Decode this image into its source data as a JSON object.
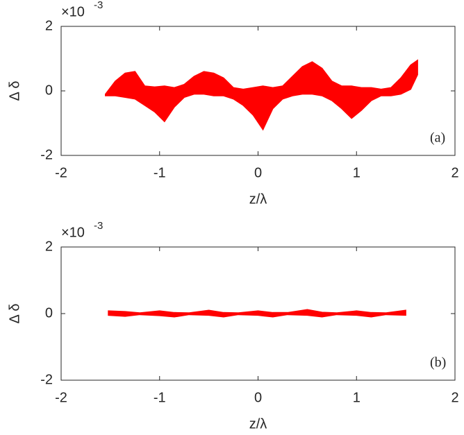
{
  "chart_data": [
    {
      "type": "band",
      "color": "#ff0000",
      "x": [
        -1.55,
        -1.45,
        -1.35,
        -1.25,
        -1.15,
        -1.05,
        -0.95,
        -0.85,
        -0.75,
        -0.65,
        -0.55,
        -0.45,
        -0.35,
        -0.25,
        -0.15,
        -0.05,
        0.05,
        0.15,
        0.25,
        0.35,
        0.45,
        0.55,
        0.65,
        0.75,
        0.85,
        0.95,
        1.05,
        1.15,
        1.25,
        1.35,
        1.45,
        1.55,
        1.62
      ],
      "upper": [
        -0.1,
        0.3,
        0.55,
        0.6,
        0.15,
        0.12,
        0.15,
        0.1,
        0.2,
        0.45,
        0.6,
        0.55,
        0.4,
        0.1,
        0.05,
        0.1,
        0.15,
        0.1,
        0.15,
        0.45,
        0.75,
        0.9,
        0.7,
        0.3,
        0.15,
        0.15,
        0.1,
        0.1,
        0.05,
        0.1,
        0.4,
        0.8,
        0.95
      ],
      "lower": [
        -0.15,
        -0.15,
        -0.2,
        -0.25,
        -0.45,
        -0.65,
        -0.95,
        -0.5,
        -0.2,
        -0.1,
        -0.1,
        -0.15,
        -0.15,
        -0.25,
        -0.45,
        -0.75,
        -1.2,
        -0.55,
        -0.25,
        -0.15,
        -0.1,
        -0.1,
        -0.15,
        -0.3,
        -0.55,
        -0.85,
        -0.6,
        -0.3,
        -0.15,
        -0.15,
        -0.1,
        0.05,
        0.5
      ],
      "xlim": [
        -2,
        2
      ],
      "ylim": [
        -2,
        2
      ],
      "xticks": [
        -2,
        -1,
        0,
        1,
        2
      ],
      "yticks": [
        -2,
        0,
        2
      ],
      "xlabel": "z/λ",
      "ylabel": "Δ δ",
      "exponent_base": "×10",
      "exponent": "-3",
      "annotation": "(a)"
    },
    {
      "type": "band",
      "color": "#ff0000",
      "x": [
        -1.52,
        -1.35,
        -1.2,
        -1.0,
        -0.85,
        -0.7,
        -0.5,
        -0.35,
        -0.2,
        0.0,
        0.15,
        0.3,
        0.5,
        0.65,
        0.8,
        1.0,
        1.15,
        1.3,
        1.5
      ],
      "upper": [
        0.08,
        0.06,
        0.02,
        0.08,
        0.03,
        0.02,
        0.1,
        0.03,
        0.02,
        0.08,
        0.03,
        0.03,
        0.12,
        0.04,
        0.02,
        0.08,
        0.03,
        0.02,
        0.1
      ],
      "lower": [
        -0.05,
        -0.08,
        -0.03,
        -0.06,
        -0.1,
        -0.03,
        -0.05,
        -0.1,
        -0.03,
        -0.05,
        -0.1,
        -0.03,
        -0.05,
        -0.1,
        -0.03,
        -0.05,
        -0.1,
        -0.03,
        -0.05
      ],
      "xlim": [
        -2,
        2
      ],
      "ylim": [
        -2,
        2
      ],
      "xticks": [
        -2,
        -1,
        0,
        1,
        2
      ],
      "yticks": [
        -2,
        0,
        2
      ],
      "xlabel": "z/λ",
      "ylabel": "Δ δ",
      "exponent_base": "×10",
      "exponent": "-3",
      "annotation": "(b)"
    }
  ]
}
